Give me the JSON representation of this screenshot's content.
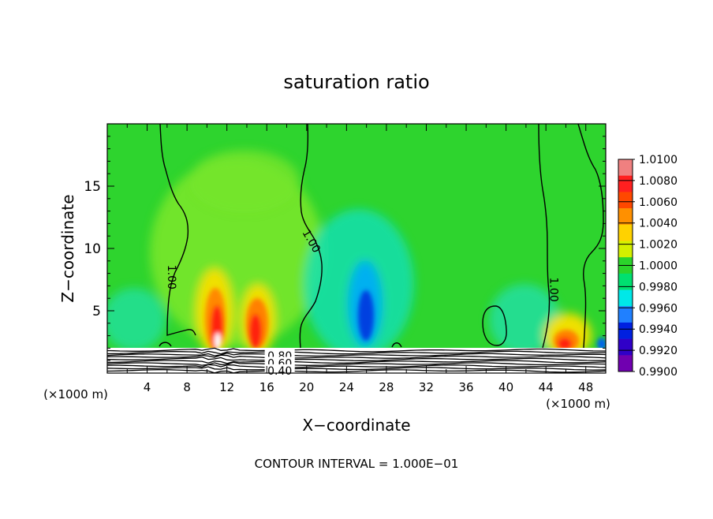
{
  "chart_data": {
    "type": "heatmap",
    "title": "saturation ratio",
    "xlabel": "X−coordinate",
    "ylabel": "Z−coordinate",
    "x_unit_left": "(×1000 m)",
    "x_unit_right": "(×1000 m)",
    "xlim": [
      0,
      50
    ],
    "ylim": [
      0,
      20
    ],
    "x_ticks": [
      "4",
      "8",
      "12",
      "16",
      "20",
      "24",
      "28",
      "32",
      "36",
      "40",
      "44",
      "48"
    ],
    "x_tick_values": [
      4,
      8,
      12,
      16,
      20,
      24,
      28,
      32,
      36,
      40,
      44,
      48
    ],
    "y_ticks": [
      "5",
      "10",
      "15"
    ],
    "y_tick_values": [
      5,
      10,
      15
    ],
    "footer": "CONTOUR INTERVAL = 1.000E−01",
    "contour_labels": [
      {
        "text": "1.00",
        "x": 6.5,
        "y": 7.7
      },
      {
        "text": "1.00",
        "x": 20.5,
        "y": 10.6
      },
      {
        "text": "1.00",
        "x": 44.8,
        "y": 6.7
      },
      {
        "text": "0.80",
        "x": 17.3,
        "y": 1.4
      },
      {
        "text": "0.60",
        "x": 17.3,
        "y": 0.8
      },
      {
        "text": "0.40",
        "x": 17.3,
        "y": 0.2
      }
    ],
    "colorbar": {
      "levels": [
        "1.0100",
        "1.0080",
        "1.0060",
        "1.0040",
        "1.0020",
        "1.0000",
        "0.9980",
        "0.9960",
        "0.9940",
        "0.9920",
        "0.9900"
      ],
      "colors": [
        "#f08080",
        "#ff2020",
        "#ff4800",
        "#ff9000",
        "#ffd200",
        "#d4f000",
        "#2bd42b",
        "#00e070",
        "#00e8e8",
        "#2080ff",
        "#0020e0",
        "#3000c8",
        "#7000b0"
      ]
    },
    "background_value": 1.0,
    "features": [
      {
        "kind": "supersaturation",
        "x": 11,
        "z": 4,
        "peak": 1.01
      },
      {
        "kind": "supersaturation",
        "x": 14.5,
        "z": 3.5,
        "peak": 1.007
      },
      {
        "kind": "supersaturation",
        "x": 46,
        "z": 2.5,
        "peak": 1.008
      },
      {
        "kind": "subsaturation",
        "x": 26,
        "z": 4.5,
        "peak": 0.994
      }
    ]
  }
}
